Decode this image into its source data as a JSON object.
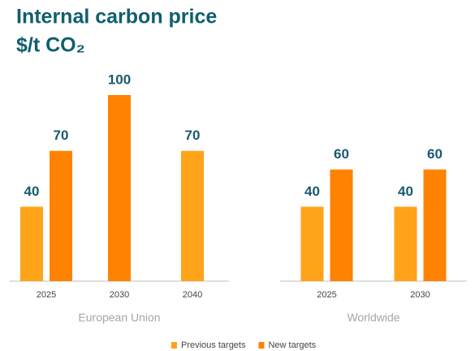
{
  "title": "Internal carbon price",
  "subtitle": "$/t CO₂",
  "chart_data": [
    {
      "type": "bar",
      "xlabel": "European Union",
      "categories": [
        "2025",
        "2030",
        "2040"
      ],
      "ylim": [
        0,
        100
      ],
      "series": [
        {
          "name": "Previous targets",
          "color": "#ffa31a",
          "values": [
            40,
            null,
            70
          ]
        },
        {
          "name": "New targets",
          "color": "#ff8200",
          "values": [
            70,
            100,
            null
          ]
        }
      ]
    },
    {
      "type": "bar",
      "xlabel": "Worldwide",
      "categories": [
        "2025",
        "2030"
      ],
      "ylim": [
        0,
        100
      ],
      "series": [
        {
          "color": "#ffa31a",
          "values": [
            40,
            40
          ]
        },
        {
          "color": "#ff8200",
          "values": [
            60,
            60
          ]
        }
      ]
    }
  ]
}
